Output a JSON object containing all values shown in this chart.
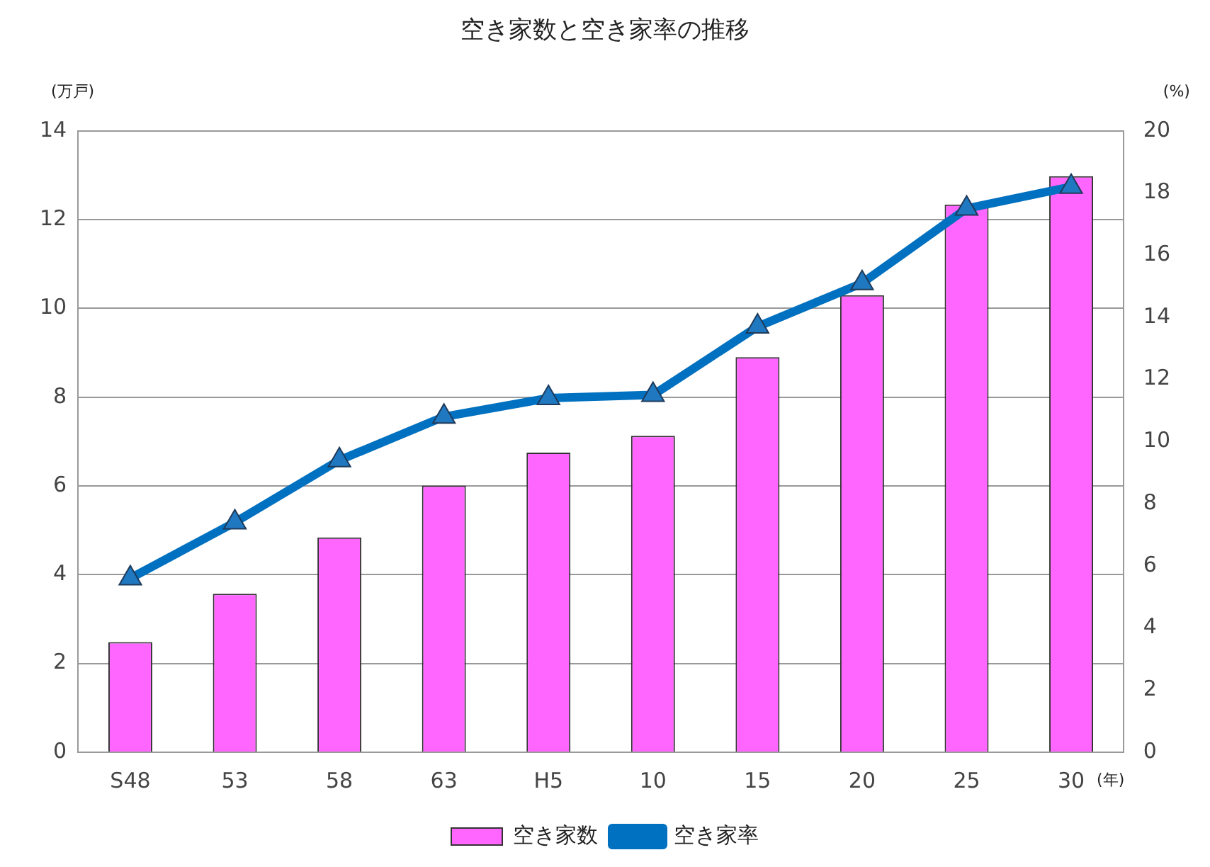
{
  "chart_data": {
    "type": "bar",
    "title": "空き家数と空き家率の推移",
    "ylabel": "(万戸)",
    "y2label": "(%)",
    "xlabel": "(年)",
    "categories": [
      "S48",
      "53",
      "58",
      "63",
      "H5",
      "10",
      "15",
      "20",
      "25",
      "30"
    ],
    "series": [
      {
        "name": "空き家数",
        "color": "#ff66ff",
        "values": [
          2.48,
          3.57,
          4.84,
          6.01,
          6.75,
          7.13,
          8.9,
          10.3,
          12.34,
          12.98
        ]
      },
      {
        "name": "空き家率",
        "type": "line",
        "axis": "y2",
        "color": "#0070c0",
        "marker": "triangle",
        "values": [
          5.6,
          7.4,
          9.4,
          10.8,
          11.4,
          11.5,
          13.7,
          15.1,
          17.5,
          18.2
        ]
      }
    ],
    "ylim": [
      0,
      14
    ],
    "yticks": [
      0,
      2,
      4,
      6,
      8,
      10,
      12,
      14
    ],
    "y2lim": [
      0,
      20
    ],
    "y2ticks": [
      0,
      2,
      4,
      6,
      8,
      10,
      12,
      14,
      16,
      18,
      20
    ],
    "grid": "y",
    "legend": "bottom"
  }
}
